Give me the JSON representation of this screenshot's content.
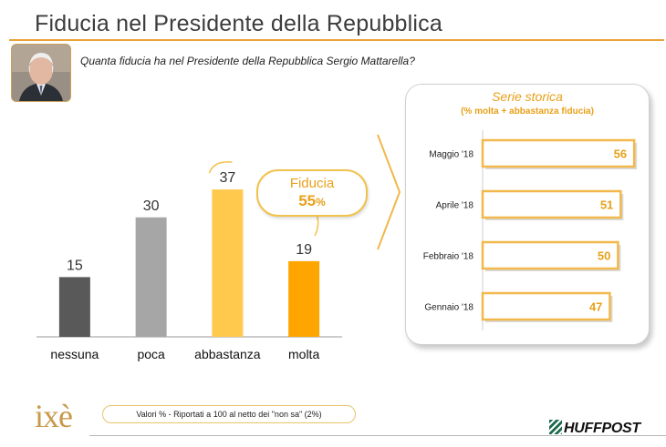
{
  "title": "Fiducia nel Presidente della Repubblica",
  "question": "Quanta fiducia ha nel Presidente della Repubblica Sergio Mattarella?",
  "fiducia": {
    "label": "Fiducia",
    "value": "55",
    "unit": "%"
  },
  "chart_data": [
    {
      "type": "bar",
      "categories": [
        "nessuna",
        "poca",
        "abbastanza",
        "molta"
      ],
      "values": [
        15,
        30,
        37,
        19
      ],
      "colors": [
        "#595959",
        "#a6a6a6",
        "#ffc94d",
        "#ffa500"
      ],
      "ylim": [
        0,
        40
      ],
      "grid": false,
      "legend": "none"
    },
    {
      "type": "bar",
      "orientation": "horizontal",
      "title": "Serie storica",
      "subtitle": "(% molta + abbastanza fiducia)",
      "categories": [
        "Maggio '18",
        "Aprile '18",
        "Febbraio '18",
        "Gennaio '18"
      ],
      "values": [
        56,
        51,
        50,
        47
      ],
      "xlim": [
        0,
        60
      ],
      "bar_color": "#f2b84b"
    }
  ],
  "footer": {
    "logo": "ixè",
    "note": "Valori % - Riportati a 100 al netto dei \"non sa\"  (2%)",
    "brand": "HUFFPOST"
  }
}
